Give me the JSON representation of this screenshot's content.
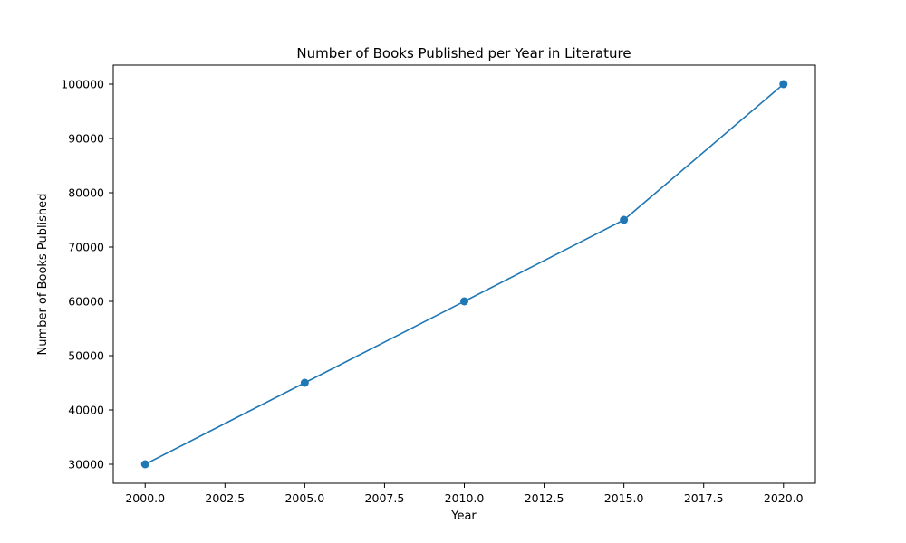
{
  "chart_data": {
    "type": "line",
    "title": "Number of Books Published per Year in Literature",
    "xlabel": "Year",
    "ylabel": "Number of Books Published",
    "x": [
      2000,
      2005,
      2010,
      2015,
      2020
    ],
    "series": [
      {
        "values": [
          30000,
          45000,
          60000,
          75000,
          100000
        ],
        "color": "#1f77b4",
        "marker": "circle"
      }
    ],
    "xlim": [
      1999,
      2021
    ],
    "ylim": [
      26500,
      103500
    ],
    "x_ticks": [
      "2000.0",
      "2002.5",
      "2005.0",
      "2007.5",
      "2010.0",
      "2012.5",
      "2015.0",
      "2017.5",
      "2020.0"
    ],
    "x_tick_values": [
      2000,
      2002.5,
      2005,
      2007.5,
      2010,
      2012.5,
      2015,
      2017.5,
      2020
    ],
    "y_ticks": [
      "30000",
      "40000",
      "50000",
      "60000",
      "70000",
      "80000",
      "90000",
      "100000"
    ],
    "y_tick_values": [
      30000,
      40000,
      50000,
      60000,
      70000,
      80000,
      90000,
      100000
    ],
    "grid": false,
    "legend": "none"
  }
}
